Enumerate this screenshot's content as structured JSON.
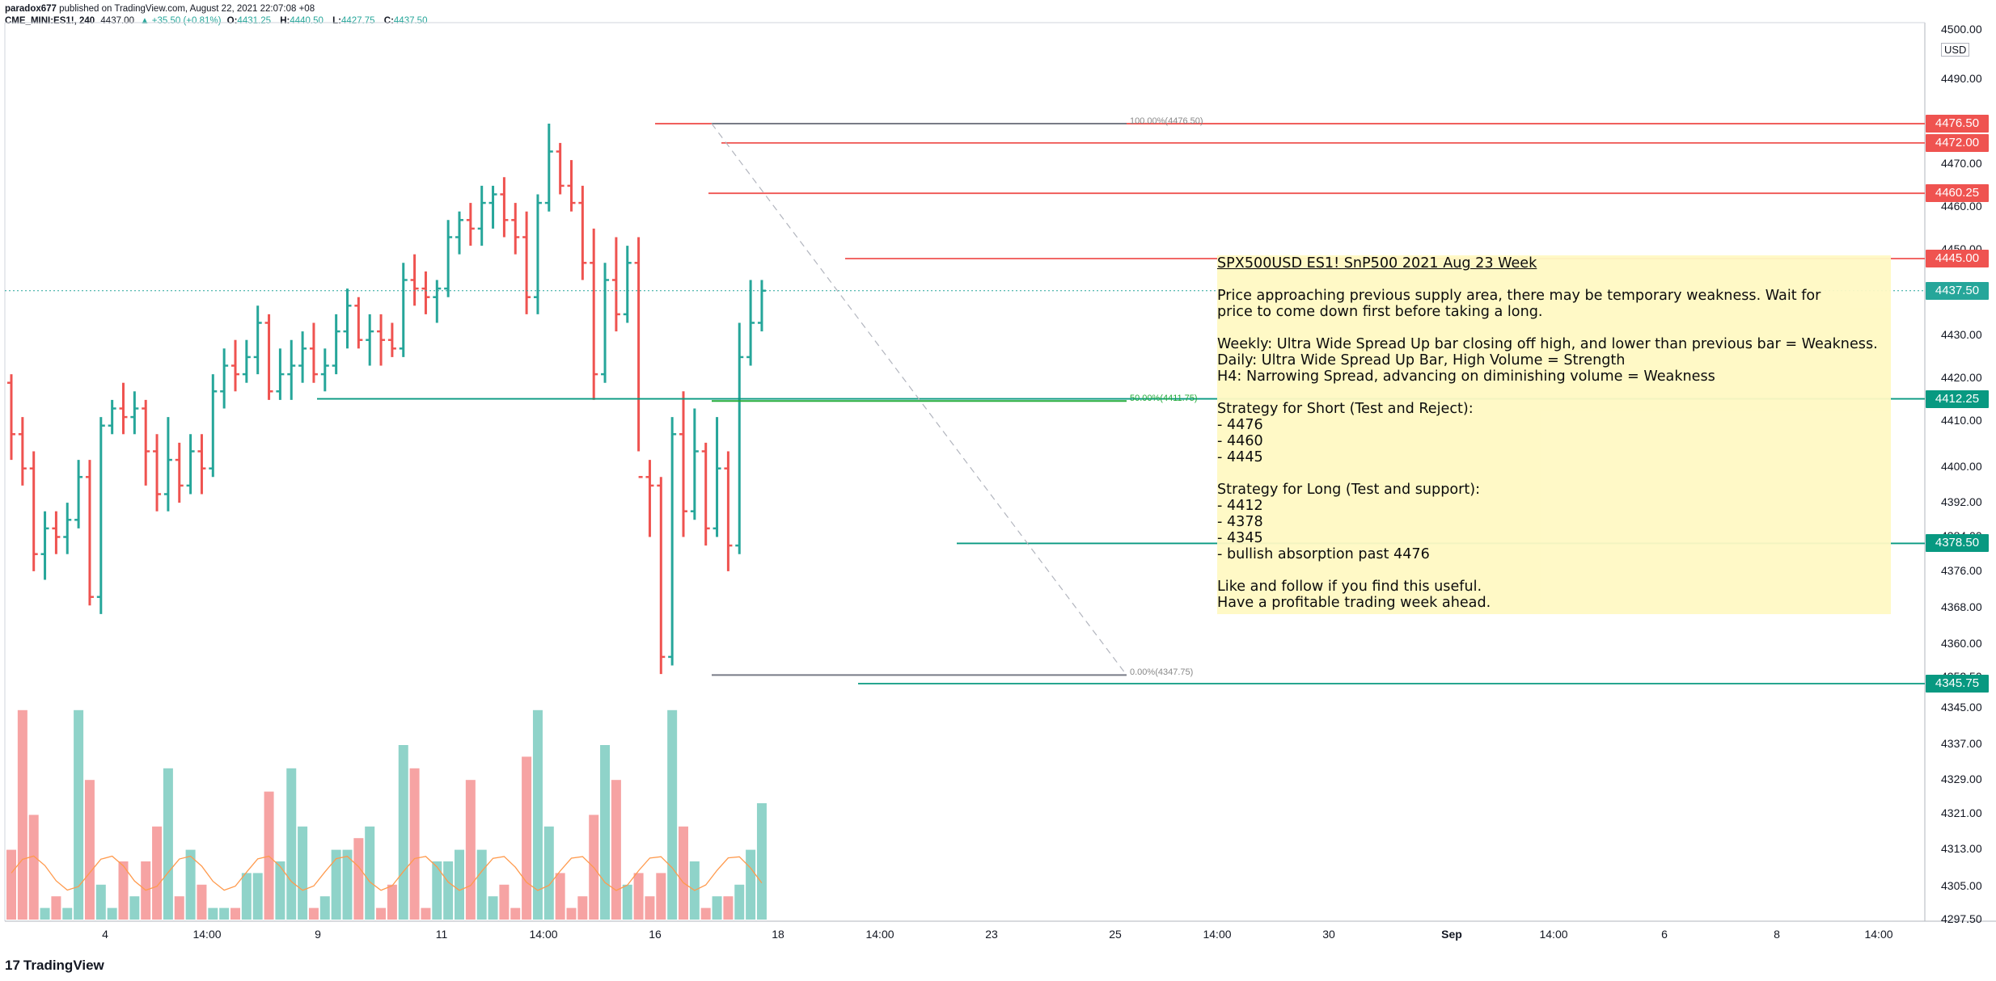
{
  "header": {
    "author": "paradox677",
    "published_text": "published on TradingView.com, August 22, 2021 22:07:08 +08",
    "symbol": "CME_MINI:ES1!, 240",
    "last": "4437.00",
    "change": "▲ +35.50 (+0.81%)",
    "o_label": "O:",
    "o": "4431.25",
    "h_label": "H:",
    "h": "4440.50",
    "l_label": "L:",
    "l": "4427.75",
    "c_label": "C:",
    "c": "4437.50"
  },
  "axis": {
    "currency": "USD",
    "price_ticks": [
      "4500.00",
      "4490.00",
      "4480.00",
      "4470.00",
      "4460.00",
      "4450.00",
      "4440.00",
      "4430.00",
      "4420.00",
      "4410.00",
      "4400.00",
      "4392.00",
      "4384.00",
      "4376.00",
      "4368.00",
      "4360.00",
      "4352.50",
      "4345.00",
      "4337.00",
      "4329.00",
      "4321.00",
      "4313.00",
      "4305.00",
      "4297.50"
    ],
    "time_ticks": [
      "4",
      "14:00",
      "9",
      "11",
      "14:00",
      "16",
      "18",
      "14:00",
      "23",
      "25",
      "14:00",
      "30",
      "Sep",
      "14:00",
      "6",
      "8",
      "14:00"
    ]
  },
  "price_labels": [
    {
      "text": "4476.50",
      "color": "#ef5350"
    },
    {
      "text": "4472.00",
      "color": "#ef5350"
    },
    {
      "text": "4460.25",
      "color": "#ef5350"
    },
    {
      "text": "4445.00",
      "color": "#ef5350"
    },
    {
      "text": "4437.50",
      "color": "#26a69a"
    },
    {
      "text": "4412.25",
      "color": "#089981"
    },
    {
      "text": "4378.50",
      "color": "#089981"
    },
    {
      "text": "4345.75",
      "color": "#089981"
    }
  ],
  "fib": {
    "level_100": "100.00%(4476.50)",
    "level_50": "50.00%(4411.75)",
    "level_0": "0.00%(4347.75)"
  },
  "note": {
    "title": "SPX500USD ES1! SnP500 2021 Aug 23 Week",
    "body": [
      "Price approaching previous supply area, there may be temporary weakness. Wait for",
      "price to come down first before taking a long.",
      "",
      "Weekly: Ultra Wide Spread Up bar closing off high, and lower than previous bar = Weakness.",
      "Daily: Ultra Wide Spread Up Bar, High Volume = Strength",
      "H4: Narrowing Spread, advancing on diminishing volume = Weakness",
      "",
      "Strategy for Short (Test and Reject):",
      "- 4476",
      "- 4460",
      "- 4445",
      "",
      "Strategy for Long (Test and support):",
      "- 4412",
      "- 4378",
      "- 4345",
      "- bullish absorption past 4476",
      "",
      "Like and follow if you find this useful.",
      "Have a profitable trading week ahead."
    ]
  },
  "footer": {
    "brand": "TradingView",
    "logo": "tradingview-logo-icon"
  },
  "colors": {
    "up": "#26a69a",
    "down": "#ef5350",
    "vol_up": "#8fd3c9",
    "vol_down": "#f6a3a3",
    "ma": "#ff9a4d"
  },
  "chart_data": {
    "type": "ohlc",
    "ylim": [
      4297.5,
      4500
    ],
    "bars": [
      [
        4416,
        4418,
        4398,
        4404
      ],
      [
        4404,
        4408,
        4392,
        4396
      ],
      [
        4396,
        4400,
        4372,
        4376
      ],
      [
        4376,
        4386,
        4370,
        4382
      ],
      [
        4382,
        4386,
        4376,
        4380
      ],
      [
        4380,
        4388,
        4376,
        4384
      ],
      [
        4384,
        4398,
        4382,
        4394
      ],
      [
        4394,
        4398,
        4364,
        4366
      ],
      [
        4366,
        4408,
        4362,
        4406
      ],
      [
        4406,
        4412,
        4404,
        4410
      ],
      [
        4410,
        4416,
        4404,
        4408
      ],
      [
        4408,
        4414,
        4404,
        4410
      ],
      [
        4410,
        4412,
        4392,
        4400
      ],
      [
        4400,
        4404,
        4386,
        4390
      ],
      [
        4390,
        4408,
        4386,
        4398
      ],
      [
        4398,
        4402,
        4388,
        4392
      ],
      [
        4392,
        4404,
        4390,
        4400
      ],
      [
        4400,
        4404,
        4390,
        4396
      ],
      [
        4396,
        4418,
        4394,
        4414
      ],
      [
        4414,
        4424,
        4410,
        4420
      ],
      [
        4420,
        4426,
        4414,
        4418
      ],
      [
        4418,
        4426,
        4416,
        4422
      ],
      [
        4422,
        4434,
        4418,
        4430
      ],
      [
        4430,
        4432,
        4412,
        4414
      ],
      [
        4414,
        4424,
        4412,
        4418
      ],
      [
        4418,
        4426,
        4412,
        4420
      ],
      [
        4420,
        4428,
        4416,
        4424
      ],
      [
        4424,
        4430,
        4416,
        4418
      ],
      [
        4418,
        4424,
        4414,
        4420
      ],
      [
        4420,
        4432,
        4418,
        4428
      ],
      [
        4428,
        4438,
        4424,
        4434
      ],
      [
        4434,
        4436,
        4424,
        4426
      ],
      [
        4426,
        4432,
        4420,
        4428
      ],
      [
        4428,
        4432,
        4420,
        4426
      ],
      [
        4426,
        4430,
        4422,
        4424
      ],
      [
        4424,
        4444,
        4422,
        4440
      ],
      [
        4440,
        4446,
        4434,
        4438
      ],
      [
        4438,
        4442,
        4432,
        4436
      ],
      [
        4436,
        4440,
        4430,
        4438
      ],
      [
        4438,
        4454,
        4436,
        4450
      ],
      [
        4450,
        4456,
        4446,
        4454
      ],
      [
        4454,
        4458,
        4448,
        4452
      ],
      [
        4452,
        4462,
        4448,
        4458
      ],
      [
        4458,
        4462,
        4452,
        4460
      ],
      [
        4460,
        4464,
        4450,
        4454
      ],
      [
        4454,
        4458,
        4446,
        4450
      ],
      [
        4450,
        4456,
        4432,
        4436
      ],
      [
        4436,
        4460,
        4432,
        4458
      ],
      [
        4458,
        4476.5,
        4456,
        4470
      ],
      [
        4470,
        4472,
        4460,
        4462
      ],
      [
        4462,
        4468,
        4456,
        4458
      ],
      [
        4458,
        4462,
        4440,
        4444
      ],
      [
        4444,
        4452,
        4412,
        4418
      ],
      [
        4418,
        4444,
        4416,
        4440
      ],
      [
        4440,
        4450,
        4428,
        4432
      ],
      [
        4432,
        4448,
        4430,
        4444
      ],
      [
        4444,
        4450,
        4400,
        4394
      ],
      [
        4394,
        4398,
        4380,
        4392
      ],
      [
        4392,
        4394,
        4348,
        4352
      ],
      [
        4352,
        4408,
        4350,
        4404
      ],
      [
        4404,
        4414,
        4380,
        4386
      ],
      [
        4386,
        4410,
        4384,
        4400
      ],
      [
        4400,
        4402,
        4378,
        4382
      ],
      [
        4382,
        4408,
        4380,
        4396
      ],
      [
        4396,
        4400,
        4372,
        4378
      ],
      [
        4378,
        4430,
        4376,
        4422
      ],
      [
        4422,
        4440,
        4420,
        4430
      ],
      [
        4430,
        4440,
        4428,
        4437.5
      ]
    ],
    "volume": [
      6,
      18,
      9,
      1,
      2,
      1,
      18,
      12,
      3,
      1,
      5,
      2,
      5,
      8,
      13,
      2,
      6,
      3,
      1,
      1,
      1,
      4,
      4,
      11,
      5,
      13,
      8,
      1,
      2,
      6,
      6,
      7,
      8,
      1,
      3,
      15,
      13,
      1,
      5,
      5,
      6,
      12,
      6,
      2,
      3,
      1,
      14,
      18,
      8,
      4,
      1,
      2,
      9,
      15,
      12,
      3,
      4,
      2,
      4,
      18,
      8,
      5,
      1,
      2,
      2,
      3,
      6,
      10
    ]
  }
}
